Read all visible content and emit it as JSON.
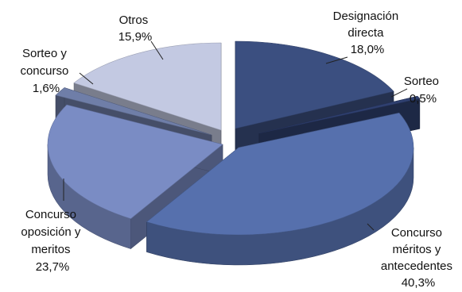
{
  "chart_data": {
    "type": "pie",
    "style": "3d-exploded",
    "slices": [
      {
        "line1": "Designación",
        "line2": "directa",
        "value_label": "18,0%",
        "value": 18.0,
        "color": "#3b4f80"
      },
      {
        "line1": "Sorteo",
        "line2": "",
        "value_label": "0,5%",
        "value": 0.5,
        "color": "#2f4070"
      },
      {
        "line1": "Concurso",
        "line2": "méritos y",
        "line3": "antecedentes",
        "value_label": "40,3%",
        "value": 40.3,
        "color": "#5670ad"
      },
      {
        "line1": "Concurso",
        "line2": "oposición y",
        "line3": "meritos",
        "value_label": "23,7%",
        "value": 23.7,
        "color": "#7a8cc4"
      },
      {
        "line1": "Sorteo y",
        "line2": "concurso",
        "value_label": "1,6%",
        "value": 1.6,
        "color": "#6f7ea8"
      },
      {
        "line1": "Otros",
        "line2": "",
        "value_label": "15,9%",
        "value": 15.9,
        "color": "#c3c9e2"
      }
    ]
  }
}
